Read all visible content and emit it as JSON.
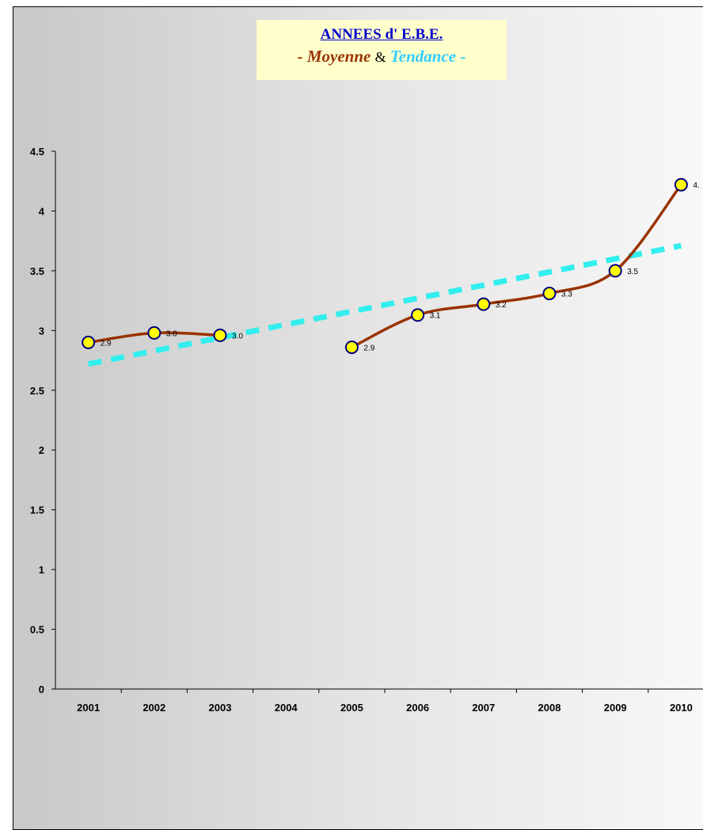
{
  "title": {
    "line1": "ANNEES d' E.B.E. ",
    "line2_moyenne": "- Moyenne",
    "line2_amp": "&",
    "line2_tendance": "Tendance -"
  },
  "colors": {
    "moyenne_line": "#993300",
    "trend_line": "#33eeee",
    "marker_fill": "#ffff00",
    "marker_stroke": "#000080",
    "title_bg": "#ffffcc"
  },
  "chart_data": {
    "type": "line",
    "title": "ANNEES d' E.B.E. - Moyenne & Tendance -",
    "categories": [
      "2001",
      "2002",
      "2003",
      "2004",
      "2005",
      "2006",
      "2007",
      "2008",
      "2009",
      "2010"
    ],
    "ylim": [
      0,
      4.5
    ],
    "yticks": [
      "0",
      "0.5",
      "1",
      "1.5",
      "2",
      "2.5",
      "3",
      "3.5",
      "4",
      "4.5"
    ],
    "grid": false,
    "series": [
      {
        "values": [
          2.9,
          2.98,
          2.96,
          null,
          2.86,
          3.13,
          3.22,
          3.31,
          3.5,
          4.22
        ],
        "labels": [
          "2.9",
          "3.0",
          "3.0",
          "",
          "2.9",
          "3.1",
          "3.2",
          "3.3",
          "3.5",
          "4."
        ],
        "smooth": true,
        "markers": true
      },
      {
        "trend": "linear",
        "values": [
          2.72,
          2.83,
          2.94,
          3.05,
          3.16,
          3.27,
          3.38,
          3.49,
          3.6,
          3.71
        ],
        "style": "dashed"
      }
    ]
  }
}
